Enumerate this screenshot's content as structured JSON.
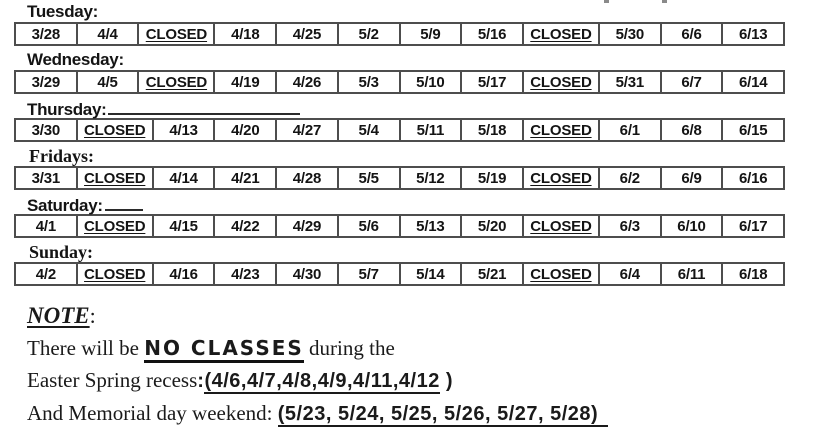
{
  "page": {
    "background": "#ffffff",
    "text_color": "#1a1a1a",
    "table_border_color": "#4d4d4d"
  },
  "schedule": {
    "closed_label": "CLOSED",
    "rows": [
      {
        "label": "Tuesday:",
        "label_font": "sans",
        "trailing_underline": "none",
        "cells": [
          "3/28",
          "4/4",
          "CLOSED",
          "4/18",
          "4/25",
          "5/2",
          "5/9",
          "5/16",
          "CLOSED",
          "5/30",
          "6/6",
          "6/13"
        ]
      },
      {
        "label": "Wednesday:",
        "label_font": "sans",
        "trailing_underline": "none",
        "cells": [
          "3/29",
          "4/5",
          "CLOSED",
          "4/19",
          "4/26",
          "5/3",
          "5/10",
          "5/17",
          "CLOSED",
          "5/31",
          "6/7",
          "6/14"
        ]
      },
      {
        "label": "Thursday:",
        "label_font": "sans",
        "trailing_underline": "long",
        "cells": [
          "3/30",
          "CLOSED",
          "4/13",
          "4/20",
          "4/27",
          "5/4",
          "5/11",
          "5/18",
          "CLOSED",
          "6/1",
          "6/8",
          "6/15"
        ]
      },
      {
        "label": "Fridays:",
        "label_font": "serif",
        "trailing_underline": "none",
        "cells": [
          "3/31",
          "CLOSED",
          "4/14",
          "4/21",
          "4/28",
          "5/5",
          "5/12",
          "5/19",
          "CLOSED",
          "6/2",
          "6/9",
          "6/16"
        ]
      },
      {
        "label": "Saturday:",
        "label_font": "sans",
        "trailing_underline": "short",
        "cells": [
          "4/1",
          "CLOSED",
          "4/15",
          "4/22",
          "4/29",
          "5/6",
          "5/13",
          "5/20",
          "CLOSED",
          "6/3",
          "6/10",
          "6/17"
        ]
      },
      {
        "label": "Sunday:",
        "label_font": "serif",
        "trailing_underline": "none",
        "cells": [
          "4/2",
          "CLOSED",
          "4/16",
          "4/23",
          "4/30",
          "5/7",
          "5/14",
          "5/21",
          "CLOSED",
          "6/4",
          "6/11",
          "6/18"
        ]
      }
    ]
  },
  "note": {
    "heading": "NOTE",
    "heading_colon": ":",
    "line1": {
      "prefix": "There will be ",
      "emphasis": "NO CLASSES",
      "suffix": " during the"
    },
    "line2": {
      "prefix": "Easter Spring recess",
      "colon": ":",
      "underlined": "(4/6,4/7,4/8,4/9,4/11,4/12",
      "suffix": " )"
    },
    "line3": {
      "prefix": "And Memorial day weekend: ",
      "underlined": "(5/23, 5/24, 5/25, 5/26, 5/27, 5/28)"
    }
  }
}
